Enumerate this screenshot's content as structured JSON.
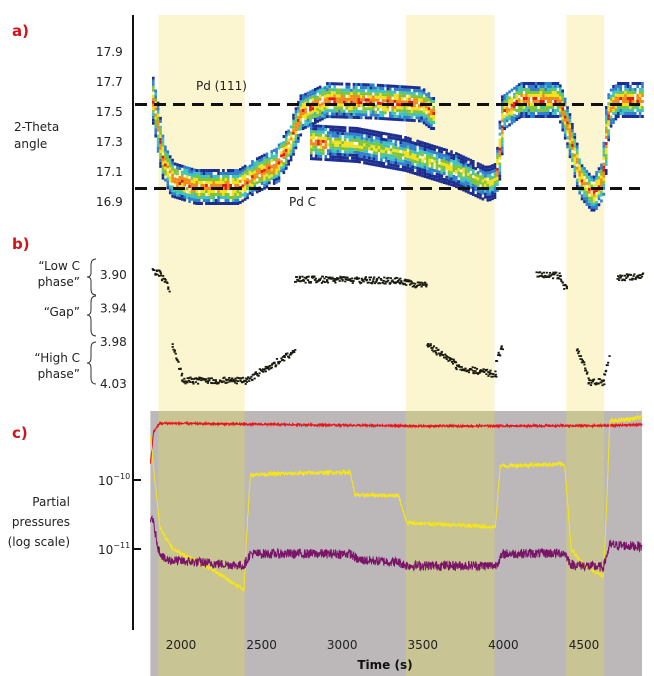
{
  "chart_data": [
    {
      "panel_label": "a)",
      "type": "heatmap",
      "ylabel": [
        "2-Theta",
        "angle"
      ],
      "yticks": [
        "17.9",
        "17.7",
        "17.5",
        "17.3",
        "17.1",
        "16.9"
      ],
      "ylim": [
        16.88,
        18.15
      ],
      "xlim": [
        1800,
        4870
      ],
      "reference_lines": [
        {
          "label": "Pd (111)",
          "value": 17.55
        },
        {
          "label": "Pd C",
          "value": 16.99
        }
      ],
      "tracks": [
        [
          [
            1820,
            17.62
          ],
          [
            1850,
            17.45
          ],
          [
            1890,
            17.18
          ],
          [
            1950,
            17.05
          ],
          [
            2100,
            17.0
          ],
          [
            2350,
            17.0
          ],
          [
            2450,
            17.07
          ],
          [
            2600,
            17.15
          ],
          [
            2680,
            17.3
          ],
          [
            2750,
            17.5
          ],
          [
            2900,
            17.58
          ],
          [
            3200,
            17.57
          ],
          [
            3500,
            17.55
          ],
          [
            3560,
            17.5
          ]
        ],
        [
          [
            2800,
            17.3
          ],
          [
            3100,
            17.28
          ],
          [
            3400,
            17.22
          ],
          [
            3700,
            17.12
          ],
          [
            3900,
            17.02
          ],
          [
            3960,
            17.05
          ],
          [
            4000,
            17.5
          ],
          [
            4100,
            17.58
          ],
          [
            4350,
            17.58
          ],
          [
            4400,
            17.4
          ],
          [
            4480,
            17.05
          ],
          [
            4560,
            16.95
          ],
          [
            4620,
            17.05
          ],
          [
            4650,
            17.5
          ],
          [
            4700,
            17.58
          ],
          [
            4860,
            17.58
          ]
        ]
      ],
      "colormap": [
        "#1c2d8f",
        "#2f7fd0",
        "#3cc3c0",
        "#7ec43a",
        "#f2e21c",
        "#f08a1c",
        "#e01a1a"
      ]
    },
    {
      "panel_label": "b)",
      "type": "scatter",
      "yticks": [
        "3.90",
        "3.94",
        "3.98",
        "4.03"
      ],
      "ylim": [
        3.875,
        4.045
      ],
      "phase_labels": [
        {
          "line1": "“Low C",
          "line2": "phase”"
        },
        {
          "line1": "“Gap”",
          "line2": ""
        },
        {
          "line1": "“High C",
          "line2": "phase”"
        }
      ],
      "segments": [
        [
          1820,
          1870,
          3.895,
          3.898
        ],
        [
          1870,
          1920,
          3.9,
          3.915
        ],
        [
          1940,
          2000,
          3.978,
          4.02
        ],
        [
          2000,
          2400,
          4.025,
          4.025
        ],
        [
          2400,
          2700,
          4.025,
          3.99
        ],
        [
          2700,
          3350,
          3.904,
          3.906
        ],
        [
          3350,
          3520,
          3.907,
          3.912
        ],
        [
          3520,
          3700,
          3.982,
          4.005
        ],
        [
          3700,
          3950,
          4.008,
          4.018
        ],
        [
          3950,
          3990,
          4.0,
          3.985
        ],
        [
          4200,
          4350,
          3.897,
          3.9
        ],
        [
          4350,
          4390,
          3.905,
          3.918
        ],
        [
          4450,
          4520,
          3.985,
          4.02
        ],
        [
          4520,
          4620,
          4.027,
          4.027
        ],
        [
          4620,
          4650,
          4.02,
          3.998
        ],
        [
          4700,
          4860,
          3.902,
          3.9
        ]
      ]
    },
    {
      "panel_label": "c)",
      "type": "line",
      "ylabel": [
        "Partial",
        "pressures",
        "(log scale)"
      ],
      "yscale": "log",
      "yticks": [
        {
          "base": "10",
          "exp": "−10"
        },
        {
          "base": "10",
          "exp": "−11"
        }
      ],
      "ylim": [
        1e-13,
        1e-09
      ],
      "xlabel": "Time (s)",
      "xticks": [
        "2000",
        "2500",
        "3000",
        "3500",
        "4000",
        "4500"
      ],
      "xlim": [
        1800,
        4870
      ],
      "series": [
        {
          "color": "#e8141c",
          "points": [
            [
              1800,
              1e-10
            ],
            [
              1830,
              5e-10
            ],
            [
              1870,
              6.6e-10
            ],
            [
              2400,
              6.4e-10
            ],
            [
              3500,
              6e-10
            ],
            [
              4650,
              6.1e-10
            ],
            [
              4860,
              6.3e-10
            ]
          ]
        },
        {
          "color": "#f5e51a",
          "points": [
            [
              1800,
              8e-10
            ],
            [
              1830,
              1.5e-10
            ],
            [
              1870,
              2e-11
            ],
            [
              1950,
              1e-11
            ],
            [
              2200,
              5e-12
            ],
            [
              2390,
              2.6e-12
            ],
            [
              2410,
              2e-11
            ],
            [
              2430,
              1.2e-10
            ],
            [
              3050,
              1.3e-10
            ],
            [
              3080,
              6e-11
            ],
            [
              3350,
              6e-11
            ],
            [
              3400,
              2.4e-11
            ],
            [
              3950,
              2.1e-11
            ],
            [
              3980,
              1.6e-10
            ],
            [
              4380,
              1.7e-10
            ],
            [
              4420,
              1e-11
            ],
            [
              4500,
              6e-12
            ],
            [
              4620,
              4e-12
            ],
            [
              4640,
              4e-11
            ],
            [
              4660,
              7e-10
            ],
            [
              4860,
              8e-10
            ]
          ]
        },
        {
          "color": "#7a1468",
          "points": [
            [
              1800,
              2e-11
            ],
            [
              1820,
              3e-11
            ],
            [
              1860,
              1e-11
            ],
            [
              1900,
              7e-12
            ],
            [
              2390,
              5.8e-12
            ],
            [
              2430,
              8.6e-12
            ],
            [
              3050,
              8.6e-12
            ],
            [
              3100,
              7e-12
            ],
            [
              3350,
              6.5e-12
            ],
            [
              3400,
              5.8e-12
            ],
            [
              3950,
              5.8e-12
            ],
            [
              4000,
              8.6e-12
            ],
            [
              4380,
              8.8e-12
            ],
            [
              4420,
              6e-12
            ],
            [
              4620,
              5.5e-12
            ],
            [
              4660,
              1.15e-11
            ],
            [
              4860,
              1.1e-11
            ]
          ]
        }
      ]
    }
  ],
  "highlight_bands": [
    [
      1860,
      2395
    ],
    [
      3395,
      3945
    ],
    [
      4390,
      4625
    ]
  ],
  "colors": {
    "highlight": "#fbf5d0",
    "gas_background": "#bcb8b9",
    "gas_highlight": "#c9c493",
    "panel_label": "#d0121b"
  }
}
